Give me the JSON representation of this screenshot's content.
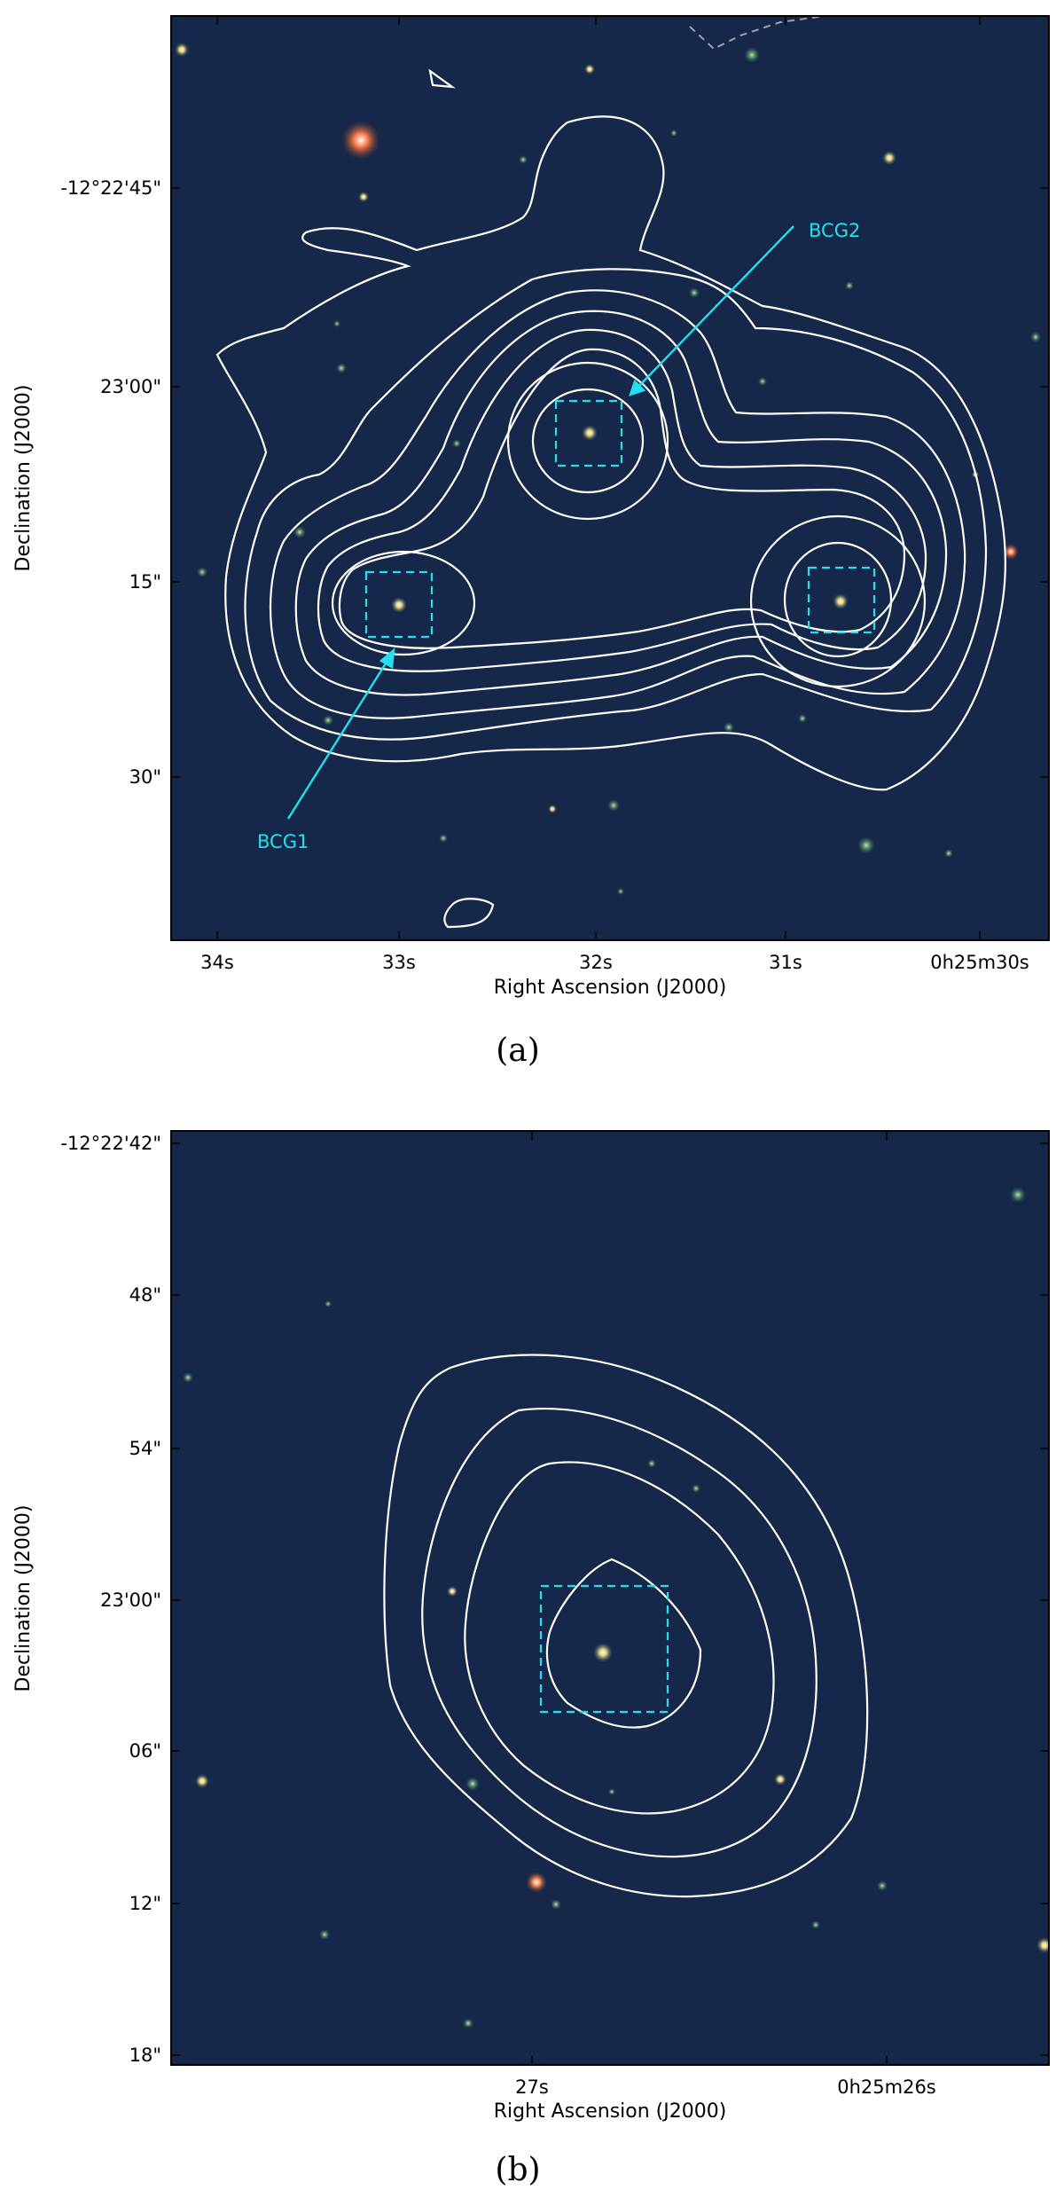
{
  "panels": [
    {
      "caption": "(a)",
      "xlabel": "Right Ascension (J2000)",
      "ylabel": "Declination (J2000)",
      "xticks": [
        "34s",
        "33s",
        "32s",
        "31s",
        "0h25m30s"
      ],
      "yticks": [
        "-12°22'45\"",
        "23'00\"",
        "15\"",
        "30\""
      ],
      "annotations": [
        "BCG1",
        "BCG2"
      ]
    },
    {
      "caption": "(b)",
      "xlabel": "Right Ascension (J2000)",
      "ylabel": "Declination (J2000)",
      "xticks": [
        "27s",
        "0h25m26s"
      ],
      "yticks": [
        "-12°22'42\"",
        "48\"",
        "54\"",
        "23'00\"",
        "06\"",
        "12\"",
        "18\""
      ]
    }
  ],
  "colors": {
    "sky_background": "#16284a",
    "contour": "#ffffff",
    "bcg_marker": "#22e0ee"
  }
}
